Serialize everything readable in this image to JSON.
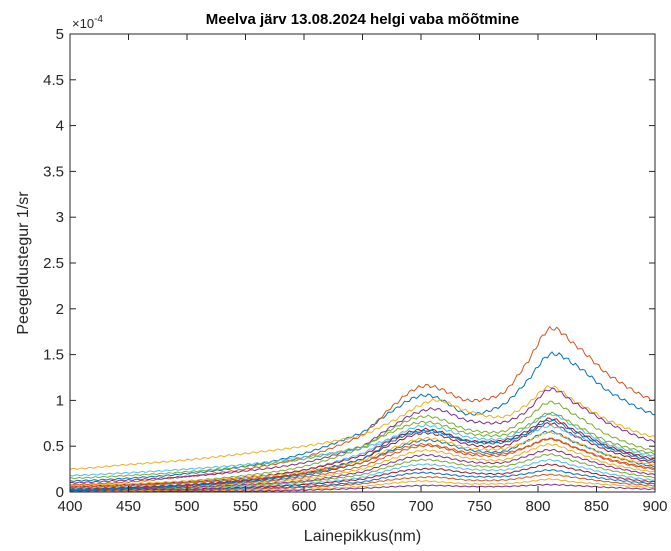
{
  "chart_data": {
    "type": "line",
    "title": "Meelva järv 13.08.2024 helgi vaba mõõtmine",
    "xlabel": "Lainepikkus(nm)",
    "ylabel": "Peegeldustegur 1/sr",
    "y_exponent_label": "×10",
    "y_exponent_power": "-4",
    "xlim": [
      400,
      900
    ],
    "ylim": [
      0,
      5
    ],
    "x_ticks": [
      "400",
      "450",
      "500",
      "550",
      "600",
      "650",
      "700",
      "750",
      "800",
      "850",
      "900"
    ],
    "y_ticks": [
      "0",
      "0.5",
      "1",
      "1.5",
      "2",
      "2.5",
      "3",
      "3.5",
      "4",
      "4.5",
      "5"
    ],
    "grid": false,
    "legend": "none",
    "x": [
      400,
      450,
      500,
      550,
      600,
      650,
      680,
      700,
      715,
      740,
      770,
      790,
      810,
      830,
      860,
      900
    ],
    "colors": [
      "#0072BD",
      "#D95319",
      "#EDB120",
      "#7E2F8E",
      "#77AC30",
      "#4DBEEE",
      "#A2142F"
    ],
    "series": [
      {
        "values": [
          0.12,
          0.15,
          0.2,
          0.28,
          0.42,
          0.65,
          0.92,
          1.05,
          1.02,
          0.85,
          0.95,
          1.2,
          1.5,
          1.4,
          1.1,
          0.85
        ]
      },
      {
        "values": [
          0.08,
          0.11,
          0.17,
          0.25,
          0.38,
          0.62,
          0.98,
          1.15,
          1.13,
          1.0,
          1.08,
          1.4,
          1.78,
          1.62,
          1.28,
          1.0
        ]
      },
      {
        "values": [
          0.25,
          0.3,
          0.35,
          0.42,
          0.5,
          0.62,
          0.8,
          0.95,
          1.0,
          0.88,
          0.82,
          0.95,
          1.15,
          1.0,
          0.78,
          0.6
        ]
      },
      {
        "values": [
          0.1,
          0.13,
          0.17,
          0.23,
          0.32,
          0.5,
          0.75,
          0.88,
          0.9,
          0.78,
          0.76,
          0.88,
          1.12,
          0.98,
          0.75,
          0.55
        ]
      },
      {
        "values": [
          0.05,
          0.07,
          0.12,
          0.18,
          0.28,
          0.48,
          0.72,
          0.82,
          0.8,
          0.68,
          0.66,
          0.8,
          0.98,
          0.85,
          0.62,
          0.45
        ]
      },
      {
        "values": [
          0.04,
          0.06,
          0.1,
          0.15,
          0.24,
          0.42,
          0.62,
          0.72,
          0.7,
          0.6,
          0.58,
          0.7,
          0.85,
          0.72,
          0.52,
          0.4
        ]
      },
      {
        "values": [
          0.03,
          0.05,
          0.08,
          0.13,
          0.21,
          0.36,
          0.55,
          0.64,
          0.62,
          0.52,
          0.5,
          0.62,
          0.75,
          0.62,
          0.45,
          0.32
        ]
      },
      {
        "values": [
          0.03,
          0.04,
          0.07,
          0.11,
          0.18,
          0.32,
          0.48,
          0.56,
          0.55,
          0.46,
          0.44,
          0.55,
          0.66,
          0.55,
          0.4,
          0.28
        ]
      },
      {
        "values": [
          0.02,
          0.03,
          0.06,
          0.1,
          0.16,
          0.28,
          0.43,
          0.5,
          0.49,
          0.41,
          0.4,
          0.49,
          0.58,
          0.49,
          0.35,
          0.25
        ]
      },
      {
        "values": [
          0.02,
          0.03,
          0.05,
          0.09,
          0.14,
          0.25,
          0.38,
          0.45,
          0.44,
          0.37,
          0.35,
          0.44,
          0.52,
          0.44,
          0.31,
          0.22
        ]
      },
      {
        "values": [
          0.02,
          0.03,
          0.05,
          0.08,
          0.12,
          0.22,
          0.34,
          0.4,
          0.39,
          0.33,
          0.32,
          0.39,
          0.46,
          0.39,
          0.28,
          0.19
        ]
      },
      {
        "values": [
          0.01,
          0.02,
          0.04,
          0.07,
          0.11,
          0.19,
          0.3,
          0.35,
          0.34,
          0.29,
          0.28,
          0.34,
          0.41,
          0.34,
          0.24,
          0.16
        ]
      },
      {
        "values": [
          0.01,
          0.02,
          0.03,
          0.06,
          0.09,
          0.16,
          0.26,
          0.3,
          0.29,
          0.25,
          0.24,
          0.29,
          0.35,
          0.29,
          0.2,
          0.13
        ]
      },
      {
        "values": [
          0.01,
          0.02,
          0.03,
          0.05,
          0.08,
          0.14,
          0.22,
          0.25,
          0.25,
          0.21,
          0.2,
          0.25,
          0.3,
          0.25,
          0.17,
          0.11
        ]
      },
      {
        "values": [
          0.01,
          0.01,
          0.02,
          0.04,
          0.06,
          0.11,
          0.18,
          0.21,
          0.2,
          0.17,
          0.17,
          0.2,
          0.24,
          0.2,
          0.14,
          0.09
        ]
      },
      {
        "values": [
          0.0,
          0.01,
          0.02,
          0.03,
          0.05,
          0.09,
          0.14,
          0.16,
          0.16,
          0.13,
          0.13,
          0.16,
          0.19,
          0.16,
          0.11,
          0.07
        ]
      },
      {
        "values": [
          0.0,
          0.01,
          0.01,
          0.02,
          0.03,
          0.06,
          0.1,
          0.12,
          0.11,
          0.09,
          0.09,
          0.11,
          0.14,
          0.11,
          0.08,
          0.05
        ]
      },
      {
        "values": [
          0.0,
          0.0,
          0.01,
          0.01,
          0.02,
          0.04,
          0.06,
          0.07,
          0.07,
          0.06,
          0.06,
          0.07,
          0.08,
          0.07,
          0.05,
          0.03
        ]
      },
      {
        "values": [
          0.15,
          0.18,
          0.22,
          0.28,
          0.36,
          0.5,
          0.68,
          0.76,
          0.74,
          0.64,
          0.62,
          0.72,
          0.86,
          0.74,
          0.55,
          0.42
        ]
      },
      {
        "values": [
          0.18,
          0.21,
          0.25,
          0.3,
          0.38,
          0.48,
          0.6,
          0.66,
          0.64,
          0.56,
          0.55,
          0.62,
          0.72,
          0.62,
          0.48,
          0.38
        ]
      },
      {
        "values": [
          0.06,
          0.08,
          0.11,
          0.16,
          0.24,
          0.4,
          0.6,
          0.68,
          0.66,
          0.56,
          0.56,
          0.66,
          0.8,
          0.68,
          0.5,
          0.36
        ]
      },
      {
        "values": [
          0.02,
          0.04,
          0.07,
          0.12,
          0.2,
          0.36,
          0.58,
          0.66,
          0.65,
          0.55,
          0.54,
          0.64,
          0.78,
          0.66,
          0.48,
          0.34
        ]
      },
      {
        "values": [
          0.05,
          0.07,
          0.1,
          0.14,
          0.2,
          0.32,
          0.46,
          0.52,
          0.5,
          0.43,
          0.42,
          0.49,
          0.58,
          0.49,
          0.36,
          0.26
        ]
      },
      {
        "values": [
          0.07,
          0.09,
          0.12,
          0.16,
          0.22,
          0.34,
          0.5,
          0.58,
          0.57,
          0.48,
          0.47,
          0.55,
          0.65,
          0.55,
          0.4,
          0.3
        ]
      }
    ]
  }
}
